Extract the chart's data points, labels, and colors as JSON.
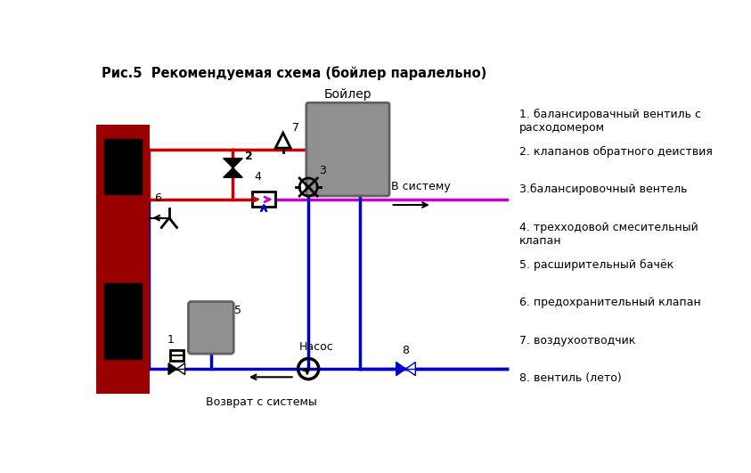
{
  "title": "Рис.5  Рекомендуемая схема (бойлер паралельно)",
  "legend": [
    "1. балансировачный вентиль с\nрасходомером",
    "2. клапанов обратного деиствия",
    "3.балансировочный вентель",
    "4. трехходовой смесительный\nклапан",
    "5. расширительный бачёк",
    "6. предохранительный клапан",
    "7. воздухоотводчик",
    "8. вентиль (лето)"
  ],
  "boiler_label": "Бойлер",
  "nasoc_label": "Насос",
  "v_sistemu_label": "В систему",
  "vozvrat_label": "Возврат с системы",
  "bg_color": "#ffffff",
  "red_color": "#cc0000",
  "blue_color": "#0000cc",
  "magenta_color": "#cc00cc",
  "black_color": "#000000",
  "gray_color": "#909090",
  "dark_red_color": "#990000",
  "line_width": 2.5
}
